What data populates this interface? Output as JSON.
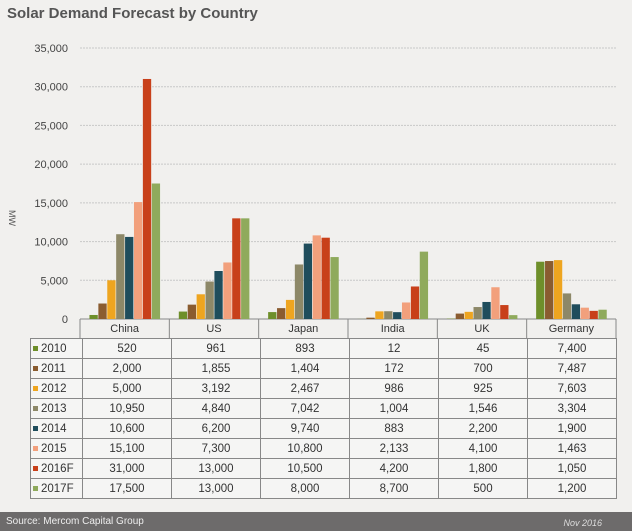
{
  "chart_data": {
    "type": "bar",
    "title": "Solar Demand Forecast by Country",
    "ylabel": "MW",
    "xlabel": "",
    "ylim": [
      0,
      35000
    ],
    "yticks": [
      "0",
      "5,000",
      "10,000",
      "15,000",
      "20,000",
      "25,000",
      "30,000",
      "35,000"
    ],
    "grid": true,
    "categories": [
      "China",
      "US",
      "Japan",
      "India",
      "UK",
      "Germany"
    ],
    "series": [
      {
        "name": "2010",
        "color": "#6e8f2a",
        "values": [
          520,
          961,
          893,
          12,
          45,
          7400
        ],
        "labels": [
          "520",
          "961",
          "893",
          "12",
          "45",
          "7,400"
        ]
      },
      {
        "name": "2011",
        "color": "#8a5c30",
        "values": [
          2000,
          1855,
          1404,
          172,
          700,
          7487
        ],
        "labels": [
          "2,000",
          "1,855",
          "1,404",
          "172",
          "700",
          "7,487"
        ]
      },
      {
        "name": "2012",
        "color": "#eea520",
        "values": [
          5000,
          3192,
          2467,
          986,
          925,
          7603
        ],
        "labels": [
          "5,000",
          "3,192",
          "2,467",
          "986",
          "925",
          "7,603"
        ]
      },
      {
        "name": "2013",
        "color": "#8d8868",
        "values": [
          10950,
          4840,
          7042,
          1004,
          1546,
          3304
        ],
        "labels": [
          "10,950",
          "4,840",
          "7,042",
          "1,004",
          "1,546",
          "3,304"
        ]
      },
      {
        "name": "2014",
        "color": "#1f4d5c",
        "values": [
          10600,
          6200,
          9740,
          883,
          2200,
          1900
        ],
        "labels": [
          "10,600",
          "6,200",
          "9,740",
          "883",
          "2,200",
          "1,900"
        ]
      },
      {
        "name": "2015",
        "color": "#f2a07c",
        "values": [
          15100,
          7300,
          10800,
          2133,
          4100,
          1463
        ],
        "labels": [
          "15,100",
          "7,300",
          "10,800",
          "2,133",
          "4,100",
          "1,463"
        ]
      },
      {
        "name": "2016F",
        "color": "#c8401a",
        "values": [
          31000,
          13000,
          10500,
          4200,
          1800,
          1050
        ],
        "labels": [
          "31,000",
          "13,000",
          "10,500",
          "4,200",
          "1,800",
          "1,050"
        ]
      },
      {
        "name": "2017F",
        "color": "#8faa5c",
        "values": [
          17500,
          13000,
          8000,
          8700,
          500,
          1200
        ],
        "labels": [
          "17,500",
          "13,000",
          "8,000",
          "8,700",
          "500",
          "1,200"
        ]
      }
    ],
    "source": "Source: Mercom Capital Group",
    "date": "Nov 2016"
  }
}
